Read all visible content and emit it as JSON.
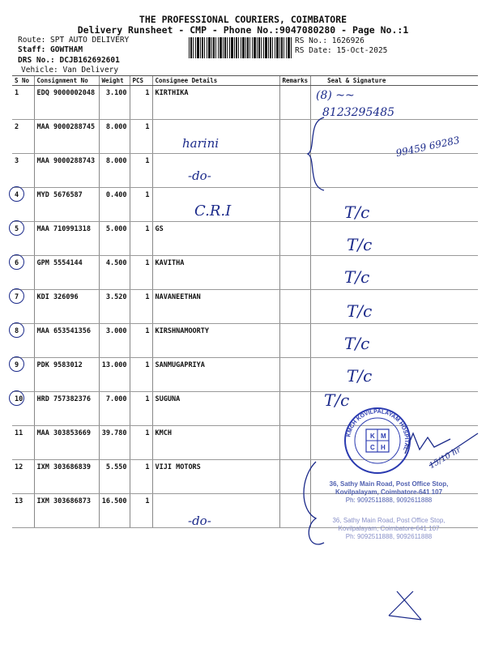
{
  "header": {
    "title": "THE PROFESSIONAL COURIERS, COIMBATORE",
    "subtitle": "Delivery Runsheet - CMP - Phone No.:9047080280 - Page No.:1",
    "route": "Route: SPT AUTO DELIVERY",
    "staff": "Staff: GOWTHAM",
    "drs_no": "DRS No.: DCJB162692601",
    "vehicle": "Vehicle: Van Delivery",
    "rs_no": "RS No.: 1626926",
    "rs_date": "RS Date: 15-Oct-2025"
  },
  "table": {
    "columns": [
      "S No",
      "Consignment No",
      "Weight",
      "PCS",
      "Consignee Details",
      "Remarks",
      "Seal & Signature"
    ],
    "rows": [
      {
        "sno": "1",
        "cons": "EDQ 9000002048",
        "weight": "3.100",
        "pcs": "1",
        "consignee": "KIRTHIKA"
      },
      {
        "sno": "2",
        "cons": "MAA 9000288745",
        "weight": "8.000",
        "pcs": "1",
        "consignee": ""
      },
      {
        "sno": "3",
        "cons": "MAA 9000288743",
        "weight": "8.000",
        "pcs": "1",
        "consignee": ""
      },
      {
        "sno": "4",
        "cons": "MYD 5676587",
        "weight": "0.400",
        "pcs": "1",
        "consignee": ""
      },
      {
        "sno": "5",
        "cons": "MAA 710991318",
        "weight": "5.000",
        "pcs": "1",
        "consignee": "GS"
      },
      {
        "sno": "6",
        "cons": "GPM 5554144",
        "weight": "4.500",
        "pcs": "1",
        "consignee": "KAVITHA"
      },
      {
        "sno": "7",
        "cons": "KDI 326096",
        "weight": "3.520",
        "pcs": "1",
        "consignee": "NAVANEETHAN"
      },
      {
        "sno": "8",
        "cons": "MAA 653541356",
        "weight": "3.000",
        "pcs": "1",
        "consignee": "KIRSHNAMOORTY"
      },
      {
        "sno": "9",
        "cons": "PDK 9583012",
        "weight": "13.000",
        "pcs": "1",
        "consignee": "SANMUGAPRIYA"
      },
      {
        "sno": "10",
        "cons": "HRD 757382376",
        "weight": "7.000",
        "pcs": "1",
        "consignee": "SUGUNA"
      },
      {
        "sno": "11",
        "cons": "MAA 303853669",
        "weight": "39.780",
        "pcs": "1",
        "consignee": "KMCH"
      },
      {
        "sno": "12",
        "cons": "IXM 303686839",
        "weight": "5.550",
        "pcs": "1",
        "consignee": "VIJI MOTORS"
      },
      {
        "sno": "13",
        "cons": "IXM 303686873",
        "weight": "16.500",
        "pcs": "1",
        "consignee": ""
      }
    ]
  },
  "handwriting": {
    "r1_sign": "8123295485",
    "r2_name": "harini",
    "r3_do": "-do-",
    "r3_phone": "99459 69283",
    "r4_name": "C.R.I",
    "tc": "T/c",
    "r13_do": "-do-",
    "r11_time": "15/10 hr"
  },
  "stamp": {
    "ring_text": "KMCH KOVILPALAYAM HOSPITAL",
    "code": "CBE-107",
    "letters": [
      "K",
      "M",
      "C",
      "H"
    ],
    "address_line1": "36, Sathy Main Road, Post Office Stop,",
    "address_line2": "Kovilpalayam, Coimbatore-641 107",
    "address_line3": "Ph: 9092511888, 9092611888",
    "color": "#2a3ab0"
  },
  "colors": {
    "ink": "#1b2a8a"
  }
}
